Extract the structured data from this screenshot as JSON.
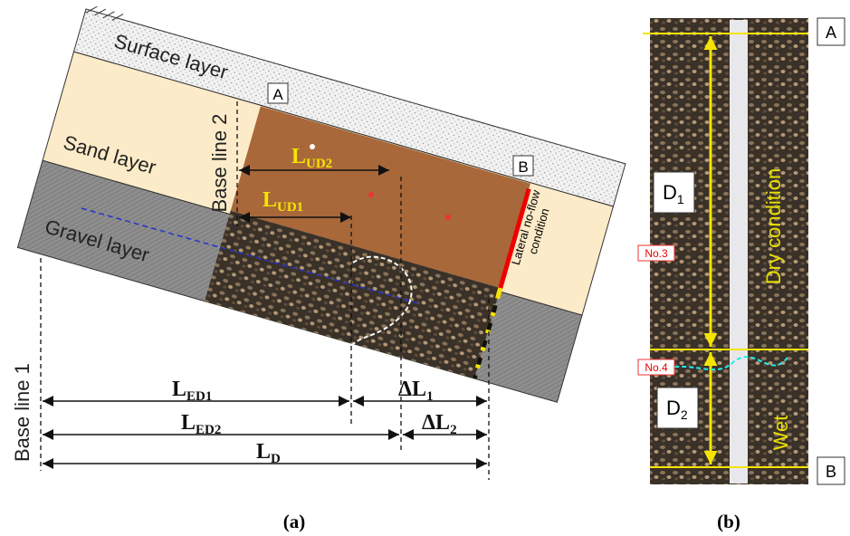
{
  "panel_a": {
    "layers": [
      "Surface layer",
      "Sand layer",
      "Gravel layer"
    ],
    "corners": [
      "A",
      "B"
    ],
    "base_lines": [
      "Base line 2",
      "Base line 1"
    ],
    "boundary": [
      "Lateral no-flow",
      "condition"
    ],
    "lengths": {
      "ud2": {
        "main": "L",
        "sub": "UD2"
      },
      "ud1": {
        "main": "L",
        "sub": "UD1"
      },
      "ed1": {
        "main": "L",
        "sub": "ED1"
      },
      "dl1": {
        "main": "ΔL",
        "sub": "1"
      },
      "ed2": {
        "main": "L",
        "sub": "ED2"
      },
      "dl2": {
        "main": "ΔL",
        "sub": "2"
      },
      "ld": {
        "main": "L",
        "sub": "D"
      }
    },
    "caption": "(a)"
  },
  "panel_b": {
    "corners": [
      "A",
      "B"
    ],
    "depths": [
      {
        "main": "D",
        "sub": "1"
      },
      {
        "main": "D",
        "sub": "2"
      }
    ],
    "sensors": [
      "No.3",
      "No.4"
    ],
    "conditions": [
      "Dry condition",
      "Wet"
    ],
    "caption": "(b)"
  }
}
